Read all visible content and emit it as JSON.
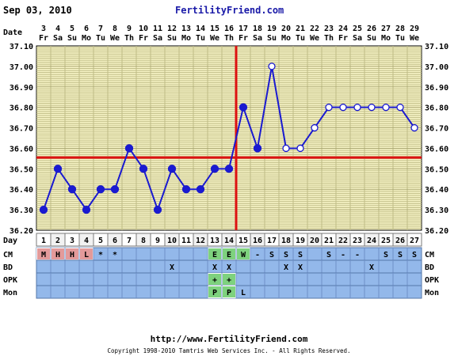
{
  "header": {
    "date": "Sep 03, 2010",
    "site": "FertilityFriend.com"
  },
  "footer": {
    "url": "http://www.FertilityFriend.com",
    "copyright": "Copyright 1998-2010 Tamtris Web Services Inc. - All Rights Reserved."
  },
  "row_labels": {
    "date": "Date",
    "day": "Day",
    "cm": "CM",
    "bd": "BD",
    "opk": "OPK",
    "mon": "Mon"
  },
  "colors": {
    "grid_bg": "#f7f4c6",
    "grid_line": "#bfbc86",
    "series": "#1a1ad0",
    "coverline": "#dd1111",
    "ovulation": "#dd1111",
    "menses": "#e39a9a",
    "fertile": "#7ed27e",
    "row_bg": "#93b8ea"
  },
  "chart_data": {
    "type": "line",
    "ylim": [
      36.2,
      37.1
    ],
    "yticks": [
      "36.20",
      "36.30",
      "36.40",
      "36.50",
      "36.60",
      "36.70",
      "36.80",
      "36.90",
      "37.00",
      "37.10"
    ],
    "dates": [
      "3",
      "4",
      "5",
      "6",
      "7",
      "8",
      "9",
      "10",
      "11",
      "12",
      "13",
      "14",
      "15",
      "16",
      "17",
      "18",
      "19",
      "20",
      "21",
      "22",
      "23",
      "24",
      "25",
      "26",
      "27",
      "28",
      "29"
    ],
    "weekdays": [
      "Fr",
      "Sa",
      "Su",
      "Mo",
      "Tu",
      "We",
      "Th",
      "Fr",
      "Sa",
      "Su",
      "Mo",
      "Tu",
      "We",
      "Th",
      "Fr",
      "Sa",
      "Su",
      "Mo",
      "Tu",
      "We",
      "Th",
      "Fr",
      "Sa",
      "Su",
      "Mo",
      "Tu",
      "We"
    ],
    "days": [
      "1",
      "2",
      "3",
      "4",
      "5",
      "6",
      "7",
      "8",
      "9",
      "10",
      "11",
      "12",
      "13",
      "14",
      "15",
      "16",
      "17",
      "18",
      "19",
      "20",
      "21",
      "22",
      "23",
      "24",
      "25",
      "26",
      "27"
    ],
    "temps": [
      36.3,
      36.5,
      36.4,
      36.3,
      36.4,
      36.4,
      36.6,
      36.5,
      36.3,
      36.5,
      36.4,
      36.4,
      36.5,
      36.5,
      36.8,
      36.6,
      37.0,
      36.6,
      36.6,
      36.7,
      36.8,
      36.8,
      36.8,
      36.8,
      36.8,
      36.8,
      36.7
    ],
    "open_from_day": 17,
    "coverline": 36.555,
    "ovulation_after_day": 14,
    "cm": [
      "M",
      "H",
      "H",
      "L",
      "*",
      "*",
      "",
      "",
      "",
      "",
      "",
      "",
      "E",
      "E",
      "W",
      "-",
      "S",
      "S",
      "S",
      "",
      "S",
      "-",
      "-",
      "",
      "S",
      "S",
      "S"
    ],
    "cm_colors": [
      "menses",
      "menses",
      "menses",
      "menses",
      "",
      "",
      "",
      "",
      "",
      "",
      "",
      "",
      "fertile",
      "fertile",
      "fertile",
      "",
      "",
      "",
      "",
      "",
      "",
      "",
      "",
      "",
      "",
      "",
      ""
    ],
    "bd": [
      "",
      "",
      "",
      "",
      "",
      "",
      "",
      "",
      "",
      "X",
      "",
      "",
      "X",
      "X",
      "",
      "",
      "",
      "X",
      "X",
      "",
      "",
      "",
      "",
      "X",
      "",
      "",
      ""
    ],
    "opk": [
      "",
      "",
      "",
      "",
      "",
      "",
      "",
      "",
      "",
      "",
      "",
      "",
      "+",
      "+",
      "",
      "",
      "",
      "",
      "",
      "",
      "",
      "",
      "",
      "",
      "",
      "",
      ""
    ],
    "opk_colors": [
      "",
      "",
      "",
      "",
      "",
      "",
      "",
      "",
      "",
      "",
      "",
      "",
      "fertile",
      "fertile",
      "",
      "",
      "",
      "",
      "",
      "",
      "",
      "",
      "",
      "",
      "",
      "",
      ""
    ],
    "mon": [
      "",
      "",
      "",
      "",
      "",
      "",
      "",
      "",
      "",
      "",
      "",
      "",
      "P",
      "P",
      "L",
      "",
      "",
      "",
      "",
      "",
      "",
      "",
      "",
      "",
      "",
      "",
      ""
    ],
    "mon_colors": [
      "",
      "",
      "",
      "",
      "",
      "",
      "",
      "",
      "",
      "",
      "",
      "",
      "fertile",
      "fertile",
      "",
      "",
      "",
      "",
      "",
      "",
      "",
      "",
      "",
      "",
      "",
      "",
      ""
    ]
  }
}
